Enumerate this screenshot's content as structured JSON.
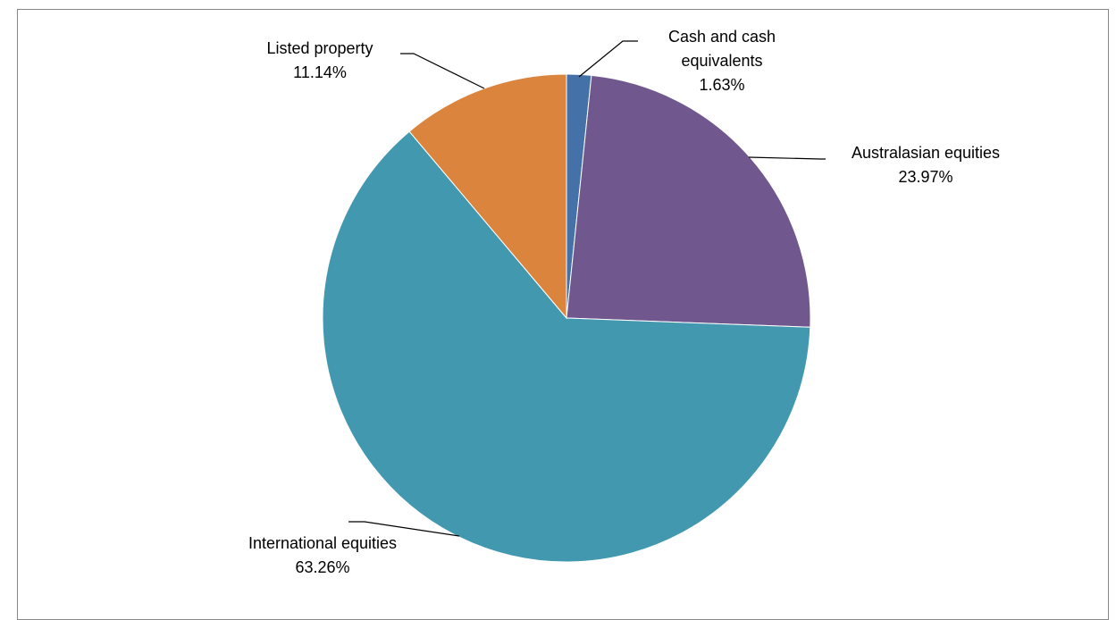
{
  "chart_data": {
    "type": "pie",
    "title": "",
    "slices": [
      {
        "label_lines": [
          "Cash and cash",
          "equivalents"
        ],
        "value": 1.63,
        "value_label": "1.63%",
        "color": "#4472A8"
      },
      {
        "label_lines": [
          "Australasian equities"
        ],
        "value": 23.97,
        "value_label": "23.97%",
        "color": "#70588E"
      },
      {
        "label_lines": [
          "International equities"
        ],
        "value": 63.26,
        "value_label": "63.26%",
        "color": "#4298AF"
      },
      {
        "label_lines": [
          "Listed property"
        ],
        "value": 11.14,
        "value_label": "11.14%",
        "color": "#DA843E"
      }
    ],
    "start_angle": "12 o'clock",
    "direction": "clockwise",
    "legend": "none",
    "data_labels": "category name and percentage, outside with leader lines"
  }
}
